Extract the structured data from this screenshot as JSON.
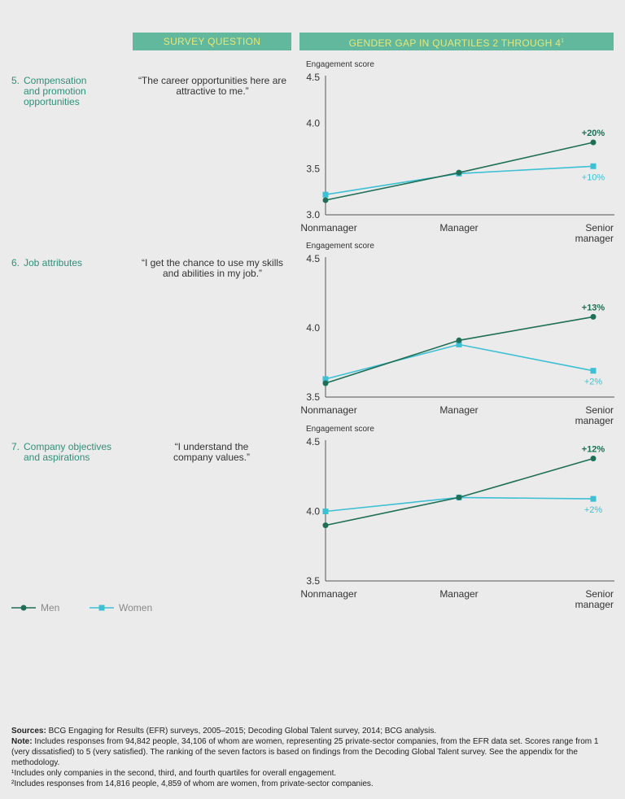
{
  "headers": {
    "survey_question": "SURVEY QUESTION",
    "gender_gap": "GENDER GAP IN QUARTILES 2 THROUGH 4",
    "gender_gap_sup": "1"
  },
  "rows": [
    {
      "number": "5.",
      "factor": "Compensation and promotion opportunities",
      "question": "“The career opportunities here are attractive to me.”"
    },
    {
      "number": "6.",
      "factor": "Job attributes",
      "question": "“I get the chance to use my skills and abilities in my job.”"
    },
    {
      "number": "7.",
      "factor": "Company objectives and aspirations",
      "question": "“I understand the company values.”"
    }
  ],
  "legend": {
    "men": "Men",
    "women": "Women"
  },
  "colors": {
    "men": "#1f6e56",
    "women": "#3cc0d4",
    "header_bg": "#62b89c",
    "header_text": "#e4e87a",
    "factor_text": "#2f8f78"
  },
  "chart_data": [
    {
      "type": "line",
      "ylabel": "Engagement score",
      "categories": [
        "Nonmanager",
        "Manager",
        "Senior manager"
      ],
      "ylim": [
        3.0,
        4.5
      ],
      "yticks": [
        "4.5",
        "4.0",
        "3.5",
        "3.0"
      ],
      "series": [
        {
          "name": "Men",
          "values": [
            3.16,
            3.46,
            3.79
          ],
          "annotation": "+20%"
        },
        {
          "name": "Women",
          "values": [
            3.22,
            3.45,
            3.53
          ],
          "annotation": "+10%"
        }
      ]
    },
    {
      "type": "line",
      "ylabel": "Engagement score",
      "categories": [
        "Nonmanager",
        "Manager",
        "Senior manager"
      ],
      "ylim": [
        3.5,
        4.5
      ],
      "yticks": [
        "4.5",
        "4.0",
        "3.5"
      ],
      "series": [
        {
          "name": "Men",
          "values": [
            3.6,
            3.91,
            4.08
          ],
          "annotation": "+13%"
        },
        {
          "name": "Women",
          "values": [
            3.63,
            3.88,
            3.69
          ],
          "annotation": "+2%"
        }
      ]
    },
    {
      "type": "line",
      "ylabel": "Engagement score",
      "categories": [
        "Nonmanager",
        "Manager",
        "Senior manager"
      ],
      "ylim": [
        3.5,
        4.5
      ],
      "yticks": [
        "4.5",
        "4.0",
        "3.5"
      ],
      "series": [
        {
          "name": "Men",
          "values": [
            3.9,
            4.1,
            4.38
          ],
          "annotation": "+12%"
        },
        {
          "name": "Women",
          "values": [
            4.0,
            4.1,
            4.09
          ],
          "annotation": "+2%"
        }
      ]
    }
  ],
  "notes": {
    "sources_label": "Sources:",
    "sources": " BCG Engaging for Results (EFR) surveys, 2005–2015; Decoding Global Talent survey, 2014; BCG analysis.",
    "note_label": "Note:",
    "note": " Includes responses from 94,842 people, 34,106 of whom are women, representing 25 private-sector companies, from the EFR data set. Scores range from 1 (very dissatisfied) to 5 (very satisfied). The ranking of the seven factors is based on findings from the Decoding Global Talent survey. See the appendix for the methodology.",
    "footnote1": "¹Includes only companies in the second, third, and fourth quartiles for overall engagement.",
    "footnote2": "²Includes responses from 14,816 people, 4,859 of whom are women, from private-sector companies."
  }
}
